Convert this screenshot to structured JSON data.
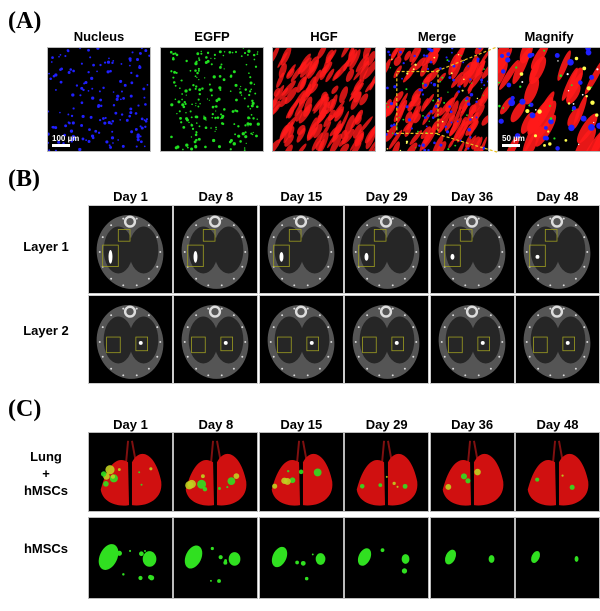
{
  "panel_a": {
    "label": "(A)",
    "columns": [
      "Nucleus",
      "EGFP",
      "HGF",
      "Merge",
      "Magnify"
    ],
    "scale_bars": {
      "nucleus": "100 µm",
      "magnify": "50 µm"
    },
    "colors": {
      "nucleus": "#2020ff",
      "egfp": "#20e020",
      "hgf": "#ff1a1a",
      "zoom_box": "#e8c020"
    }
  },
  "panel_b": {
    "label": "(B)",
    "days": [
      "Day 1",
      "Day 8",
      "Day 15",
      "Day 29",
      "Day 36",
      "Day 48"
    ],
    "rows": [
      "Layer 1",
      "Layer 2"
    ],
    "colors": {
      "roi_box": "#a0a020",
      "tissue": "#555555"
    }
  },
  "panel_c": {
    "label": "(C)",
    "days": [
      "Day 1",
      "Day 8",
      "Day 15",
      "Day 29",
      "Day 36",
      "Day 48"
    ],
    "rows": [
      {
        "lines": [
          "Lung",
          "+",
          "hMSCs"
        ]
      },
      {
        "lines": [
          "hMSCs"
        ]
      }
    ],
    "colors": {
      "lung": "#d01010",
      "hmscs": "#30e020"
    }
  }
}
